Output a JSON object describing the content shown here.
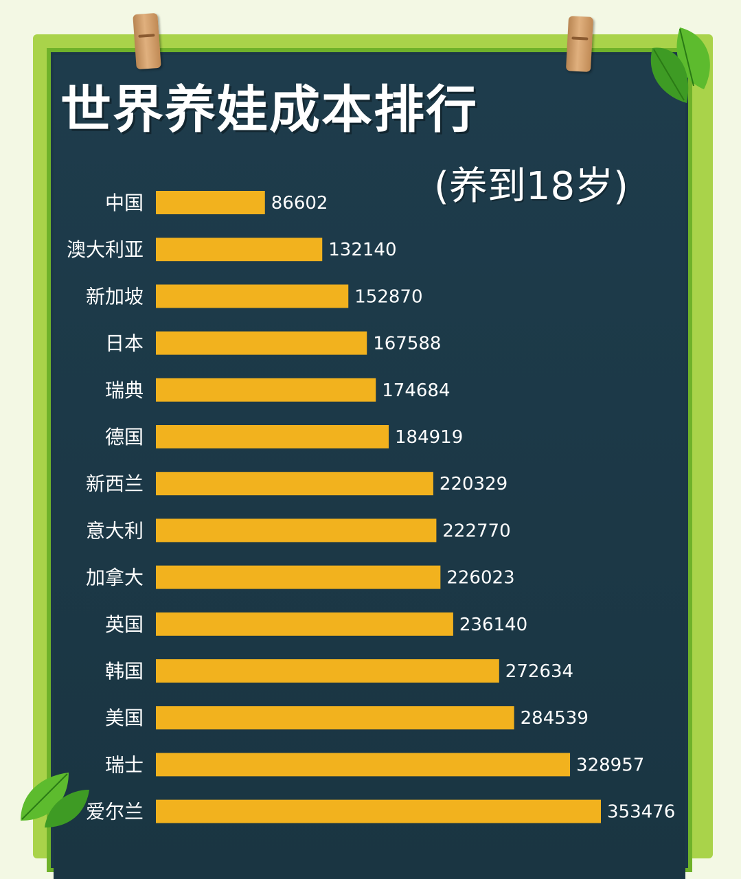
{
  "header": {
    "title": "世界养娃成本排行",
    "subtitle": "(养到18岁)"
  },
  "colors": {
    "bar": "#f2b21e",
    "board": "#1c3847",
    "frame": "#6fb22a",
    "text": "#ffffff"
  },
  "chart_data": {
    "type": "bar",
    "orientation": "horizontal",
    "title": "世界养娃成本排行",
    "subtitle": "(养到18岁)",
    "categories": [
      "中国",
      "澳大利亚",
      "新加坡",
      "日本",
      "瑞典",
      "德国",
      "新西兰",
      "意大利",
      "加拿大",
      "英国",
      "韩国",
      "美国",
      "瑞士",
      "爱尔兰"
    ],
    "values": [
      86602,
      132140,
      152870,
      167588,
      174684,
      184919,
      220329,
      222770,
      226023,
      236140,
      272634,
      284539,
      328957,
      353476
    ],
    "data_labels": [
      "86602",
      "132140",
      "152870",
      "167588",
      "174684",
      "184919",
      "220329",
      "222770",
      "226023",
      "236140",
      "272634",
      "284539",
      "328957",
      "353476"
    ],
    "xlim": [
      0,
      353476
    ],
    "grid": false,
    "legend": "none"
  }
}
